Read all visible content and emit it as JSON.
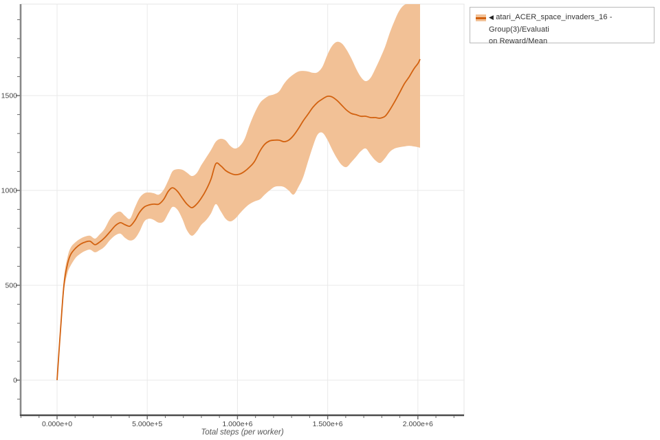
{
  "colors": {
    "background": "#ffffff",
    "grid": "#e9e9e9",
    "frame": "#e4e4e4",
    "spine_left": "#888888",
    "spine_bottom": "#4a4a4a",
    "tick_mark": "#666666",
    "tick_text": "#444444",
    "axis_title": "#555555",
    "legend_border": "#b9b9b9",
    "legend_text": "#333333"
  },
  "legend": {
    "collapse_icon": "◀",
    "line1": "atari_ACER_space_invaders_16 - Group(3)/Evaluati",
    "line2": "on Reward/Mean"
  },
  "chart_data": {
    "type": "line",
    "title": "",
    "xlabel": "Total steps (per worker)",
    "ylabel": "",
    "grid": true,
    "legend_position": "top-right",
    "x_tick_labels": [
      "0.000e+0",
      "5.000e+5",
      "1.000e+6",
      "1.500e+6",
      "2.000e+6"
    ],
    "x_tick_values": [
      0,
      500000,
      1000000,
      1500000,
      2000000
    ],
    "y_tick_labels": [
      "0",
      "500",
      "1000",
      "1500"
    ],
    "y_tick_values": [
      0,
      500,
      1000,
      1500
    ],
    "x_minor_step": 100000,
    "y_minor_step": 100,
    "xlim": [
      -202000,
      2256000
    ],
    "ylim": [
      -185,
      1982
    ],
    "series": [
      {
        "name": "atari_ACER_space_invaders_16 - Group(3)/Evaluation Reward/Mean",
        "line_color": "#d2610f",
        "band_color": "#f2c196",
        "x": [
          0,
          19000,
          38000,
          57000,
          76000,
          103000,
          130000,
          156000,
          183000,
          210000,
          236000,
          263000,
          294000,
          324000,
          351000,
          377000,
          404000,
          431000,
          457000,
          484000,
          511000,
          537000,
          564000,
          591000,
          617000,
          640000,
          667000,
          694000,
          720000,
          747000,
          774000,
          800000,
          827000,
          854000,
          880000,
          907000,
          934000,
          960000,
          987000,
          1014000,
          1040000,
          1067000,
          1094000,
          1124000,
          1151000,
          1178000,
          1204000,
          1231000,
          1258000,
          1284000,
          1311000,
          1338000,
          1364000,
          1391000,
          1418000,
          1444000,
          1471000,
          1498000,
          1524000,
          1551000,
          1578000,
          1604000,
          1631000,
          1658000,
          1684000,
          1711000,
          1738000,
          1764000,
          1791000,
          1818000,
          1844000,
          1871000,
          1898000,
          1925000,
          1951000,
          1978000,
          2001000,
          2012000
        ],
        "mean": [
          0,
          264,
          500,
          609,
          663,
          696,
          717,
          728,
          732,
          714,
          728,
          750,
          783,
          815,
          830,
          819,
          812,
          841,
          884,
          913,
          924,
          928,
          928,
          953,
          996,
          1014,
          996,
          960,
          928,
          909,
          928,
          960,
          1004,
          1062,
          1141,
          1130,
          1105,
          1091,
          1083,
          1087,
          1101,
          1123,
          1152,
          1207,
          1243,
          1261,
          1265,
          1265,
          1257,
          1265,
          1290,
          1326,
          1366,
          1402,
          1438,
          1464,
          1482,
          1496,
          1493,
          1475,
          1449,
          1424,
          1406,
          1399,
          1391,
          1391,
          1384,
          1384,
          1381,
          1391,
          1424,
          1467,
          1514,
          1562,
          1598,
          1641,
          1670,
          1692
        ],
        "lower": [
          0,
          250,
          467,
          562,
          605,
          645,
          667,
          681,
          688,
          674,
          685,
          703,
          739,
          764,
          772,
          750,
          736,
          746,
          783,
          837,
          851,
          844,
          830,
          837,
          880,
          913,
          899,
          851,
          790,
          761,
          783,
          819,
          844,
          880,
          928,
          891,
          851,
          837,
          851,
          880,
          906,
          928,
          942,
          953,
          978,
          1000,
          1018,
          1022,
          1018,
          1000,
          978,
          1018,
          1069,
          1152,
          1232,
          1294,
          1304,
          1268,
          1217,
          1170,
          1134,
          1123,
          1149,
          1178,
          1207,
          1221,
          1188,
          1159,
          1145,
          1170,
          1203,
          1221,
          1228,
          1232,
          1235,
          1232,
          1228,
          1225
        ],
        "upper": [
          0,
          286,
          536,
          645,
          699,
          728,
          746,
          757,
          761,
          746,
          768,
          797,
          851,
          880,
          888,
          866,
          851,
          909,
          960,
          985,
          989,
          985,
          978,
          1004,
          1054,
          1101,
          1112,
          1109,
          1094,
          1076,
          1091,
          1134,
          1174,
          1214,
          1257,
          1272,
          1264,
          1235,
          1221,
          1235,
          1272,
          1344,
          1406,
          1460,
          1485,
          1500,
          1507,
          1522,
          1562,
          1591,
          1612,
          1627,
          1630,
          1627,
          1620,
          1623,
          1652,
          1714,
          1761,
          1783,
          1775,
          1743,
          1696,
          1641,
          1598,
          1576,
          1594,
          1641,
          1696,
          1757,
          1830,
          1895,
          1949,
          1978,
          1982,
          1982,
          1982,
          1982
        ]
      }
    ]
  }
}
